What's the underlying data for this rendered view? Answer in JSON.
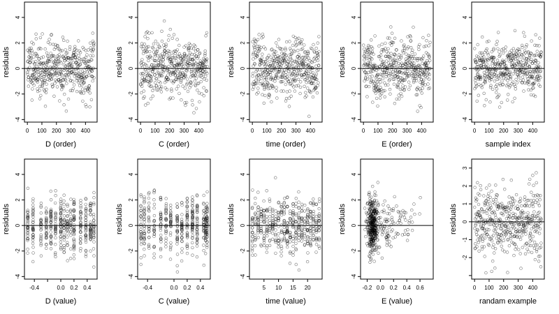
{
  "chart_data": [
    {
      "type": "scatter",
      "xlabel": "D (order)",
      "ylabel": "residuals",
      "xlim": [
        -20,
        480
      ],
      "ylim": [
        -4.2,
        5.2
      ],
      "xticks": [
        0,
        100,
        200,
        300,
        400
      ],
      "xtick_labels": [
        "0",
        "100",
        "200",
        "300",
        "400"
      ],
      "yticks": [
        -4,
        -2,
        0,
        2,
        4
      ],
      "ytick_labels": [
        "-4",
        "-2",
        "0",
        "2",
        "4"
      ],
      "hline": 0,
      "mode": "order",
      "n": 460,
      "seed": 11,
      "sd": 1.1,
      "wave": 0.6
    },
    {
      "type": "scatter",
      "xlabel": "C (order)",
      "ylabel": "residuals",
      "xlim": [
        -20,
        480
      ],
      "ylim": [
        -4.2,
        5.2
      ],
      "xticks": [
        0,
        100,
        200,
        300,
        400
      ],
      "xtick_labels": [
        "0",
        "100",
        "200",
        "300",
        "400"
      ],
      "yticks": [
        -4,
        -2,
        0,
        2,
        4
      ],
      "ytick_labels": [
        "-4",
        "-2",
        "0",
        "2",
        "4"
      ],
      "hline": 0,
      "mode": "order",
      "n": 460,
      "seed": 23,
      "sd": 1.15,
      "wave": 0.5
    },
    {
      "type": "scatter",
      "xlabel": "time (order)",
      "ylabel": "residuals",
      "xlim": [
        -20,
        480
      ],
      "ylim": [
        -4.2,
        5.2
      ],
      "xticks": [
        0,
        100,
        200,
        300,
        400
      ],
      "xtick_labels": [
        "0",
        "100",
        "200",
        "300",
        "400"
      ],
      "yticks": [
        -4,
        -2,
        0,
        2,
        4
      ],
      "ytick_labels": [
        "-4",
        "-2",
        "0",
        "2",
        "4"
      ],
      "hline": 0,
      "mode": "order",
      "n": 460,
      "seed": 37,
      "sd": 1.1,
      "wave": 0.7
    },
    {
      "type": "scatter",
      "xlabel": "E (order)",
      "ylabel": "residuals",
      "xlim": [
        -20,
        480
      ],
      "ylim": [
        -4.2,
        5.2
      ],
      "xticks": [
        0,
        100,
        200,
        300,
        400
      ],
      "xtick_labels": [
        "0",
        "100",
        "200",
        "300",
        "400"
      ],
      "yticks": [
        -4,
        -2,
        0,
        2,
        4
      ],
      "ytick_labels": [
        "-4",
        "-2",
        "0",
        "2",
        "4"
      ],
      "hline": 0,
      "mode": "order",
      "n": 460,
      "seed": 41,
      "sd": 1.1,
      "wave": 0.8
    },
    {
      "type": "scatter",
      "xlabel": "sample index",
      "ylabel": "residuals",
      "xlim": [
        -20,
        480
      ],
      "ylim": [
        -4.2,
        5.2
      ],
      "xticks": [
        0,
        100,
        200,
        300,
        400
      ],
      "xtick_labels": [
        "0",
        "100",
        "200",
        "300",
        "400"
      ],
      "yticks": [
        -4,
        -2,
        0,
        2,
        4
      ],
      "ytick_labels": [
        "-4",
        "-2",
        "0",
        "2",
        "4"
      ],
      "hline": 0,
      "mode": "order",
      "n": 460,
      "seed": 53,
      "sd": 1.1,
      "wave": 0.2
    },
    {
      "type": "scatter",
      "xlabel": "D (value)",
      "ylabel": "residuals",
      "xlim": [
        -0.55,
        0.55
      ],
      "ylim": [
        -4.2,
        5.2
      ],
      "xticks": [
        -0.4,
        -0.2,
        0.0,
        0.2,
        0.4
      ],
      "xtick_labels": [
        "-0.4",
        "",
        "0.0",
        "0.2",
        "0.4"
      ],
      "yticks": [
        -4,
        -2,
        0,
        2,
        4
      ],
      "ytick_labels": [
        "-4",
        "-2",
        "0",
        "2",
        "4"
      ],
      "hline": 0,
      "mode": "columns",
      "n": 460,
      "seed": 61,
      "sd": 1.1,
      "columns": [
        -0.5,
        -0.42,
        -0.3,
        -0.22,
        -0.15,
        -0.08,
        0.0,
        0.05,
        0.1,
        0.15,
        0.2,
        0.3,
        0.38,
        0.45,
        0.5
      ]
    },
    {
      "type": "scatter",
      "xlabel": "C (value)",
      "ylabel": "residuals",
      "xlim": [
        -0.55,
        0.55
      ],
      "ylim": [
        -4.2,
        5.2
      ],
      "xticks": [
        -0.4,
        0.0,
        0.2,
        0.4
      ],
      "xtick_labels": [
        "-0.4",
        "0.0",
        "0.2",
        "0.4"
      ],
      "yticks": [
        -4,
        -2,
        0,
        2,
        4
      ],
      "ytick_labels": [
        "-4",
        "-2",
        "0",
        "2",
        "4"
      ],
      "hline": 0,
      "mode": "columns",
      "n": 460,
      "seed": 71,
      "sd": 1.15,
      "columns": [
        -0.5,
        -0.45,
        -0.38,
        -0.3,
        -0.2,
        -0.12,
        -0.05,
        0.05,
        0.12,
        0.2,
        0.28,
        0.35,
        0.45,
        0.48,
        0.5
      ]
    },
    {
      "type": "scatter",
      "xlabel": "time (value)",
      "ylabel": "residuals",
      "xlim": [
        0,
        25
      ],
      "ylim": [
        -4.2,
        5.2
      ],
      "xticks": [
        5,
        10,
        15,
        20
      ],
      "xtick_labels": [
        "5",
        "10",
        "15",
        "20"
      ],
      "yticks": [
        -4,
        -2,
        0,
        2,
        4
      ],
      "ytick_labels": [
        "-4",
        "-2",
        "0",
        "2",
        "4"
      ],
      "hline": 0,
      "mode": "columns",
      "n": 460,
      "seed": 83,
      "sd": 1.1,
      "columns": [
        1,
        2,
        3,
        4,
        5,
        6,
        7,
        8,
        9,
        10,
        11,
        12,
        13,
        14,
        15,
        16,
        17,
        18,
        19,
        20,
        21,
        22,
        23,
        24
      ]
    },
    {
      "type": "scatter",
      "xlabel": "E (value)",
      "ylabel": "residuals",
      "xlim": [
        -0.3,
        0.8
      ],
      "ylim": [
        -4.2,
        5.2
      ],
      "xticks": [
        -0.2,
        0.0,
        0.2,
        0.4,
        0.6
      ],
      "xtick_labels": [
        "-0.2",
        "0.0",
        "0.2",
        "0.4",
        "0.6"
      ],
      "yticks": [
        -4,
        -2,
        0,
        2,
        4
      ],
      "ytick_labels": [
        "-4",
        "-2",
        "0",
        "2",
        "4"
      ],
      "hline": 0,
      "mode": "skewed",
      "n": 460,
      "seed": 97,
      "sd": 1.1,
      "center": -0.12,
      "spread": 0.04
    },
    {
      "type": "scatter",
      "xlabel": "randam example",
      "ylabel": "residuals",
      "xlim": [
        -20,
        480
      ],
      "ylim": [
        -3.2,
        3.5
      ],
      "xticks": [
        0,
        100,
        200,
        300,
        400
      ],
      "xtick_labels": [
        "0",
        "100",
        "200",
        "300",
        "400"
      ],
      "yticks": [
        -3,
        -2,
        -1,
        0,
        1,
        2,
        3
      ],
      "ytick_labels": [
        "",
        "-2",
        "-1",
        "0",
        "1",
        "2",
        "3"
      ],
      "hline": 0,
      "mode": "order",
      "n": 460,
      "seed": 109,
      "sd": 1.0,
      "wave": 0.0
    }
  ]
}
